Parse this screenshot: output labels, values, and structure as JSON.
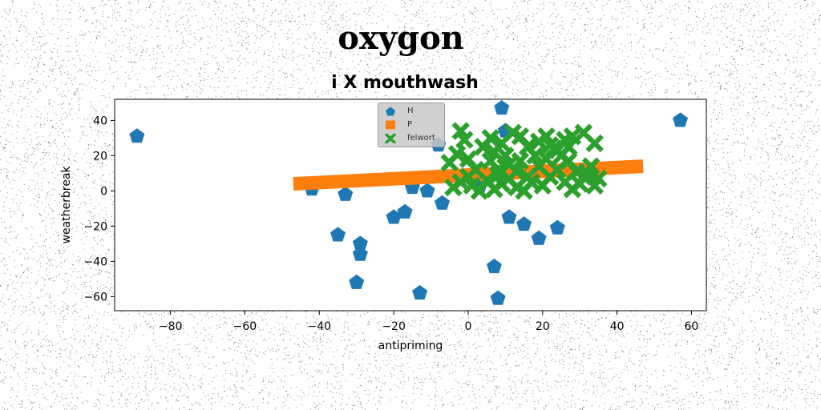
{
  "figure": {
    "suptitle": "oxygon"
  },
  "chart_data": {
    "type": "scatter",
    "title": "i X mouthwash",
    "xlabel": "antipriming",
    "ylabel": "weatherbreak",
    "xlim": [
      -95,
      64
    ],
    "ylim": [
      -68,
      52
    ],
    "xticks": [
      -80,
      -60,
      -40,
      -20,
      0,
      20,
      40,
      60
    ],
    "yticks": [
      -60,
      -40,
      -20,
      0,
      20,
      40
    ],
    "xtick_labels": [
      "−80",
      "−60",
      "−40",
      "−20",
      "0",
      "20",
      "40",
      "60"
    ],
    "ytick_labels": [
      "−60",
      "−40",
      "−20",
      "0",
      "20",
      "40"
    ],
    "grid": false,
    "legend_position": "top-center",
    "series": [
      {
        "name": "H",
        "marker": "pentagon",
        "color": "#1f77b4",
        "points": [
          [
            -89,
            31
          ],
          [
            57,
            40
          ],
          [
            9,
            47
          ],
          [
            10,
            34
          ],
          [
            -8,
            26
          ],
          [
            -42,
            1
          ],
          [
            -33,
            -2
          ],
          [
            -15,
            2
          ],
          [
            -11,
            0
          ],
          [
            3,
            2
          ],
          [
            -7,
            -7
          ],
          [
            -20,
            -15
          ],
          [
            -17,
            -12
          ],
          [
            11,
            -15
          ],
          [
            15,
            -19
          ],
          [
            19,
            -27
          ],
          [
            24,
            -21
          ],
          [
            -35,
            -25
          ],
          [
            -29,
            -30
          ],
          [
            -29,
            -36
          ],
          [
            7,
            -43
          ],
          [
            -30,
            -52
          ],
          [
            -13,
            -58
          ],
          [
            8,
            -61
          ]
        ]
      },
      {
        "name": "P",
        "marker": "square",
        "style": "line",
        "color": "#ff7f0e",
        "points": [
          [
            -47,
            4
          ],
          [
            47,
            14
          ]
        ]
      },
      {
        "name": "felwort",
        "marker": "x",
        "color": "#2ca02c",
        "points": [
          [
            -2,
            34
          ],
          [
            -1,
            29
          ],
          [
            4,
            25
          ],
          [
            7,
            22
          ],
          [
            9,
            27
          ],
          [
            12,
            33
          ],
          [
            14,
            31
          ],
          [
            16,
            25
          ],
          [
            19,
            28
          ],
          [
            21,
            31
          ],
          [
            22,
            26
          ],
          [
            24,
            23
          ],
          [
            26,
            29
          ],
          [
            28,
            31
          ],
          [
            31,
            33
          ],
          [
            34,
            27
          ],
          [
            -3,
            21
          ],
          [
            -5,
            16
          ],
          [
            0,
            18
          ],
          [
            2,
            12
          ],
          [
            6,
            17
          ],
          [
            8,
            12
          ],
          [
            11,
            15
          ],
          [
            13,
            11
          ],
          [
            16,
            8
          ],
          [
            19,
            14
          ],
          [
            21,
            18
          ],
          [
            24,
            12
          ],
          [
            27,
            17
          ],
          [
            29,
            11
          ],
          [
            31,
            8
          ],
          [
            33,
            14
          ],
          [
            35,
            7
          ],
          [
            -2,
            5
          ],
          [
            0,
            8
          ],
          [
            1,
            3
          ],
          [
            5,
            6
          ],
          [
            7,
            1
          ],
          [
            9,
            4
          ],
          [
            11,
            7
          ],
          [
            13,
            2
          ],
          [
            15,
            0
          ],
          [
            17,
            5
          ],
          [
            20,
            3
          ],
          [
            22,
            8
          ],
          [
            26,
            5
          ],
          [
            28,
            1
          ],
          [
            30,
            4
          ],
          [
            32,
            10
          ],
          [
            34,
            3
          ],
          [
            -4,
            2
          ],
          [
            3,
            0
          ],
          [
            8,
            9
          ],
          [
            10,
            20
          ],
          [
            18,
            20
          ],
          [
            23,
            24
          ],
          [
            25,
            20
          ],
          [
            27,
            25
          ],
          [
            14,
            17
          ],
          [
            6,
            30
          ]
        ]
      }
    ]
  }
}
